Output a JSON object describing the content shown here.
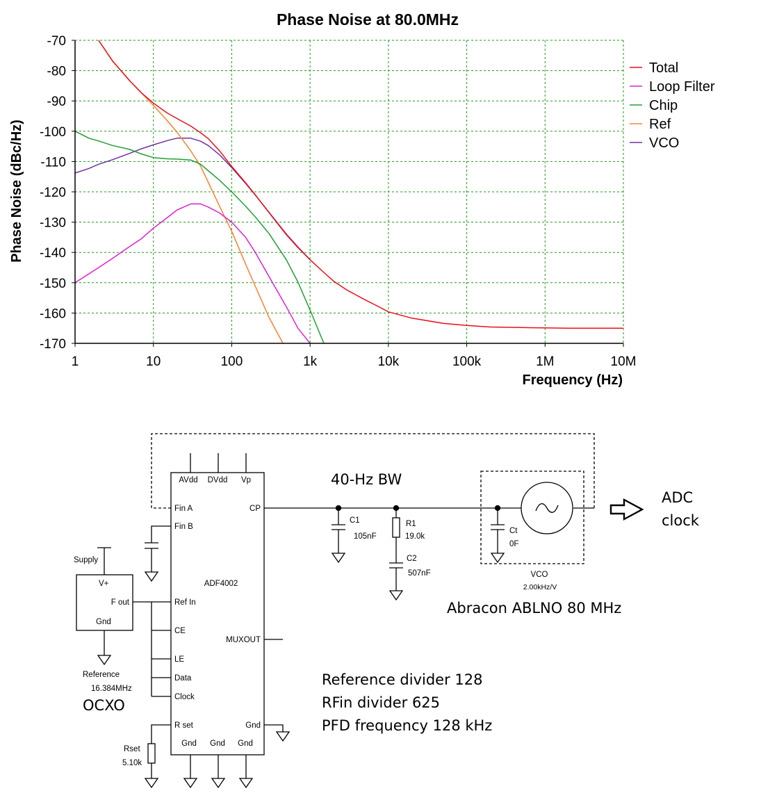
{
  "chart_data": {
    "type": "line",
    "title": "Phase Noise at 80.0MHz",
    "xlabel": "Frequency (Hz)",
    "ylabel": "Phase Noise (dBc/Hz)",
    "xscale": "log",
    "xlim": [
      1,
      10000000
    ],
    "ylim": [
      -170,
      -70
    ],
    "grid": true,
    "legend_position": "right",
    "x_ticks": [
      {
        "value": 1,
        "label": "1"
      },
      {
        "value": 10,
        "label": "10"
      },
      {
        "value": 100,
        "label": "100"
      },
      {
        "value": 1000,
        "label": "1k"
      },
      {
        "value": 10000,
        "label": "10k"
      },
      {
        "value": 100000,
        "label": "100k"
      },
      {
        "value": 1000000,
        "label": "1M"
      },
      {
        "value": 10000000,
        "label": "10M"
      }
    ],
    "y_ticks": [
      -70,
      -80,
      -90,
      -100,
      -110,
      -120,
      -130,
      -140,
      -150,
      -160,
      -170
    ],
    "series": [
      {
        "name": "Total",
        "color": "#e8101a",
        "x": [
          2,
          3,
          5,
          7,
          10,
          15,
          20,
          30,
          40,
          50,
          70,
          100,
          150,
          200,
          300,
          500,
          700,
          1000,
          1500,
          2000,
          3000,
          5000,
          7000,
          10000,
          20000,
          50000,
          100000,
          200000,
          500000,
          1000000,
          2000000,
          5000000,
          10000000
        ],
        "y": [
          -70,
          -76.8,
          -83.4,
          -87.3,
          -90.7,
          -94.0,
          -95.8,
          -98.3,
          -100.5,
          -102.4,
          -106.5,
          -111.6,
          -117.0,
          -121.0,
          -126.9,
          -134.2,
          -138.4,
          -142.4,
          -146.6,
          -149.5,
          -152.5,
          -155.6,
          -157.5,
          -159.6,
          -161.7,
          -163.4,
          -164.1,
          -164.6,
          -164.8,
          -164.9,
          -165.0,
          -165.0,
          -165.0
        ]
      },
      {
        "name": "Loop Filter",
        "color": "#e020d0",
        "x": [
          1,
          2,
          3,
          5,
          7,
          10,
          15,
          20,
          30,
          40,
          50,
          70,
          100,
          150,
          200,
          300,
          500,
          700,
          1000
        ],
        "y": [
          -150,
          -145,
          -142,
          -138,
          -135.5,
          -132,
          -128.5,
          -126,
          -124,
          -124,
          -125,
          -127,
          -130,
          -135,
          -140,
          -148,
          -158,
          -165,
          -170
        ]
      },
      {
        "name": "Chip",
        "color": "#20a030",
        "x": [
          1,
          1.5,
          2,
          3,
          5,
          7,
          10,
          15,
          20,
          30,
          40,
          50,
          70,
          100,
          150,
          200,
          300,
          500,
          700,
          1000,
          1500
        ],
        "y": [
          -100,
          -102.3,
          -103.2,
          -104.7,
          -106,
          -107.5,
          -108.7,
          -109.1,
          -109.2,
          -109.5,
          -110.9,
          -113.0,
          -116.2,
          -120.0,
          -124.7,
          -128.3,
          -133.8,
          -142.5,
          -149.8,
          -159.0,
          -170
        ]
      },
      {
        "name": "Ref",
        "color": "#ff8030",
        "x": [
          2,
          3,
          5,
          7,
          10,
          15,
          20,
          30,
          40,
          50,
          70,
          100,
          150,
          200,
          300,
          450
        ],
        "y": [
          -70,
          -76.8,
          -83.4,
          -87.3,
          -91.5,
          -96.5,
          -100.3,
          -106.5,
          -111.5,
          -116.8,
          -124.8,
          -133.0,
          -143.8,
          -151.2,
          -161.5,
          -170
        ]
      },
      {
        "name": "VCO",
        "color": "#7030a0",
        "x": [
          1,
          1.5,
          2,
          3,
          5,
          7,
          10,
          15,
          20,
          30,
          40,
          50,
          70,
          100,
          150,
          200,
          300,
          500,
          700,
          1000
        ],
        "y": [
          -113.8,
          -112.3,
          -110.9,
          -109.4,
          -107.3,
          -105.8,
          -104.5,
          -103.1,
          -102.3,
          -102.3,
          -103.3,
          -104.7,
          -107.8,
          -112.0,
          -117.2,
          -121.1,
          -126.8,
          -134.0,
          -138.2,
          -142.4
        ]
      }
    ]
  },
  "schematic": {
    "chip_name": "ADF4002",
    "pins_top": [
      "AVdd",
      "DVdd",
      "Vp"
    ],
    "pins_left": [
      "Fin A",
      "Fin B",
      "Ref In",
      "CE",
      "LE",
      "Data",
      "Clock",
      "R set"
    ],
    "pins_right": [
      "CP",
      "MUXOUT",
      "Gnd"
    ],
    "pins_bottom": [
      "Gnd",
      "Gnd",
      "Gnd"
    ],
    "supply_label": "Supply",
    "osc_pins": [
      "V+",
      "F out",
      "Gnd"
    ],
    "reference_label": "Reference",
    "reference_freq": "16.384MHz",
    "rset_name": "Rset",
    "rset_value": "5.10k",
    "c1_name": "C1",
    "c1_value": "105nF",
    "r1_name": "R1",
    "r1_value": "19.0k",
    "c2_name": "C2",
    "c2_value": "507nF",
    "ct_name": "Ct",
    "ct_value": "0F",
    "vco_name": "VCO",
    "vco_gain": "2.00kHz/V",
    "bw_note": "40-Hz BW",
    "adc_line1": "ADC",
    "adc_line2": "clock",
    "abracon_note": "Abracon ABLNO 80 MHz",
    "ocxo_note": "OCXO",
    "notes": [
      "Reference divider 128",
      "RFin divider 625",
      "PFD frequency 128 kHz"
    ]
  }
}
